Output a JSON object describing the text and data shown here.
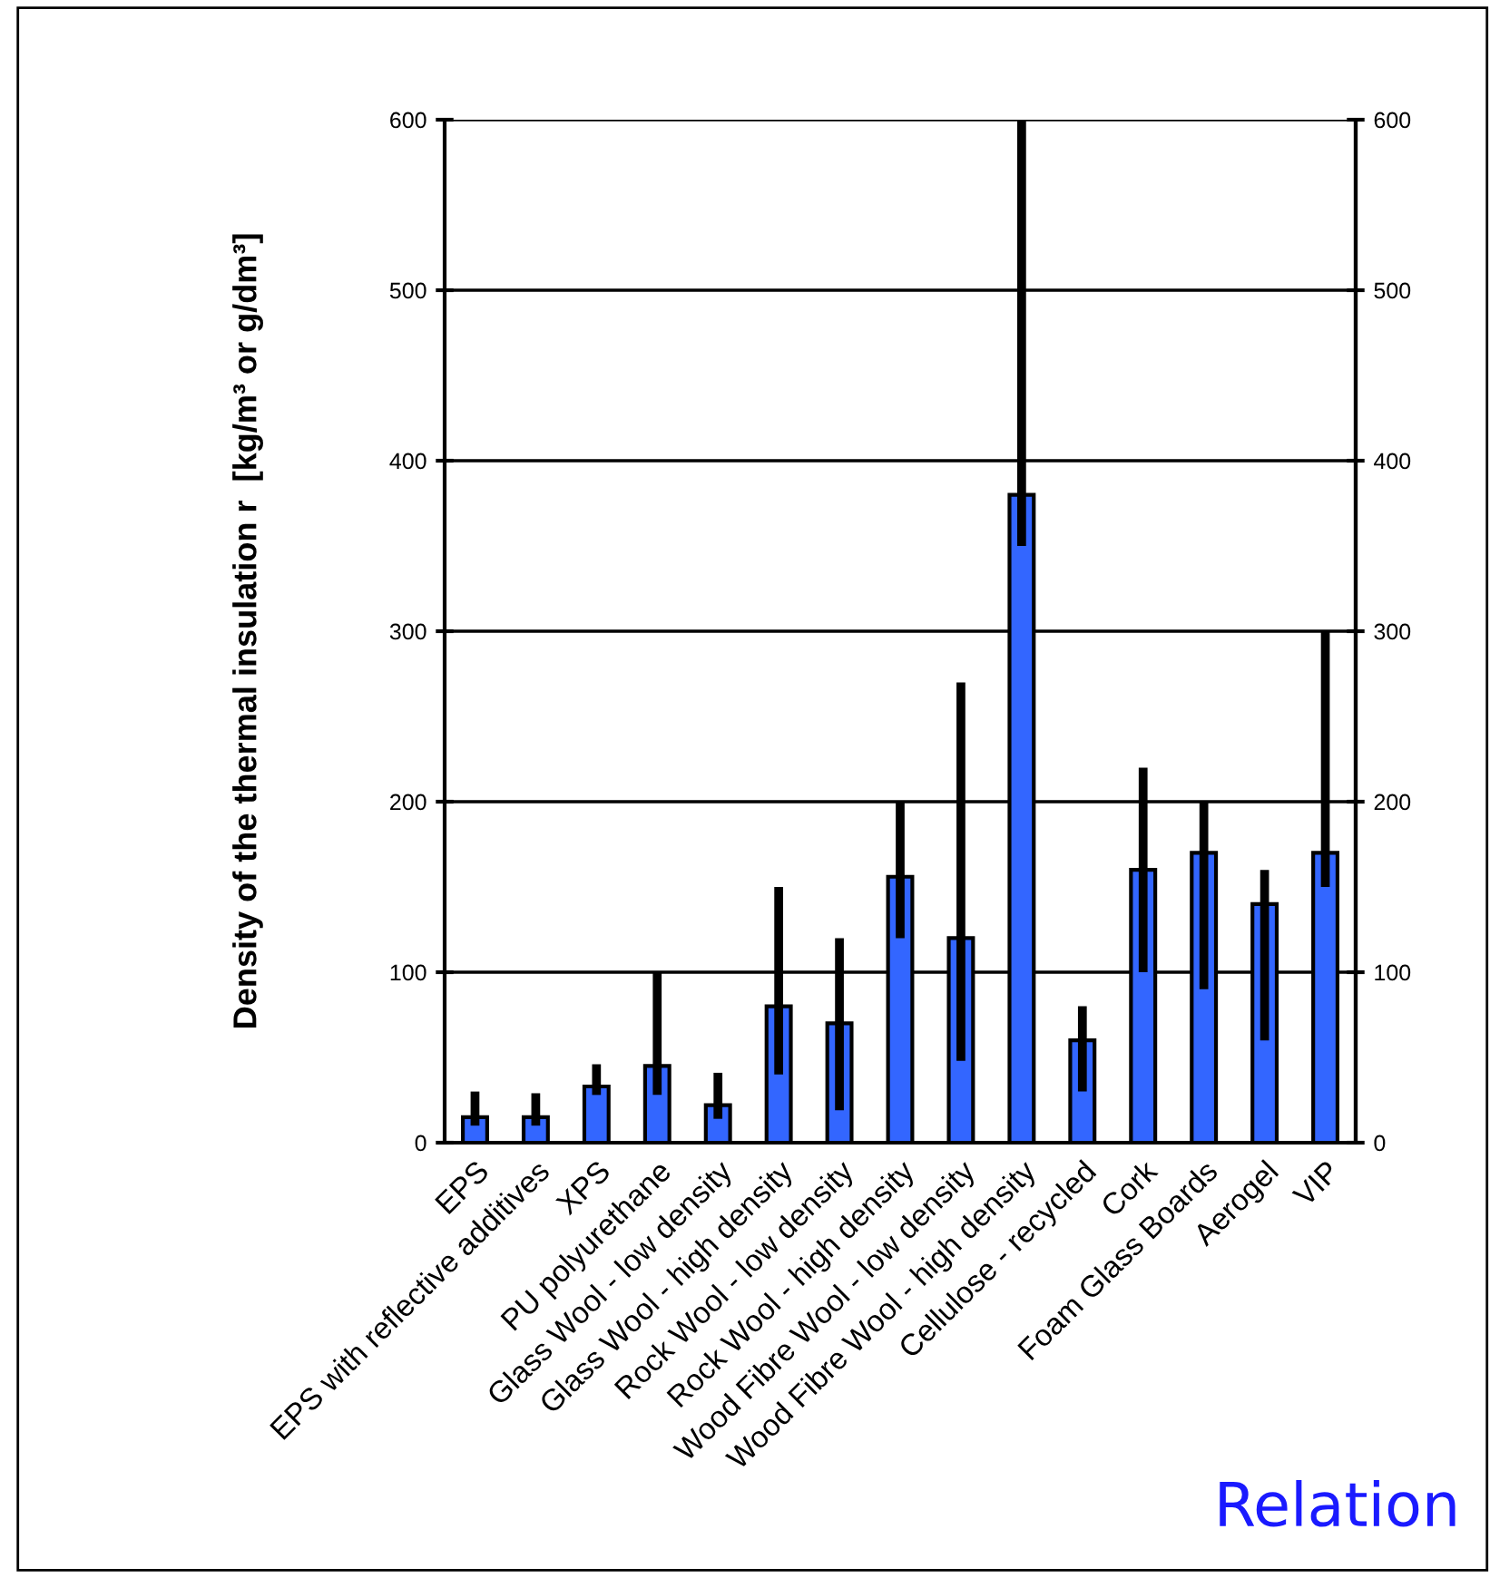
{
  "chart_data": {
    "type": "bar",
    "ylabel": "Density of the thermal insulation r  [kg/m³ or g/dm³]",
    "categories": [
      "EPS",
      "EPS with reflective additives",
      "XPS",
      "PU polyurethane",
      "Glass Wool - low density",
      "Glass Wool - high density",
      "Rock Wool - low density",
      "Rock Wool - high density",
      "Wood Fibre Wool - low density",
      "Wood Fibre Wool - high density",
      "Cellulose - recycled",
      "Cork",
      "Foam Glass Boards",
      "Aerogel",
      "VIP"
    ],
    "values": [
      15,
      15,
      33,
      45,
      22,
      80,
      70,
      156,
      120,
      380,
      60,
      160,
      170,
      140,
      170
    ],
    "errors": [
      [
        10,
        30
      ],
      [
        10,
        29
      ],
      [
        28,
        46
      ],
      [
        28,
        100
      ],
      [
        14,
        41
      ],
      [
        40,
        150
      ],
      [
        19,
        120
      ],
      [
        120,
        200
      ],
      [
        48,
        270
      ],
      [
        350,
        600
      ],
      [
        30,
        80
      ],
      [
        100,
        220
      ],
      [
        90,
        200
      ],
      [
        60,
        160
      ],
      [
        150,
        300
      ]
    ],
    "color": "#3366ff",
    "ylim": [
      0,
      600
    ],
    "yticks": [
      0,
      100,
      200,
      300,
      400,
      500,
      600
    ],
    "y2lim": [
      0,
      600
    ],
    "y2ticks": [
      0,
      100,
      200,
      300,
      400,
      500,
      600
    ],
    "grid": "y",
    "annotations": [
      "Relation"
    ]
  }
}
